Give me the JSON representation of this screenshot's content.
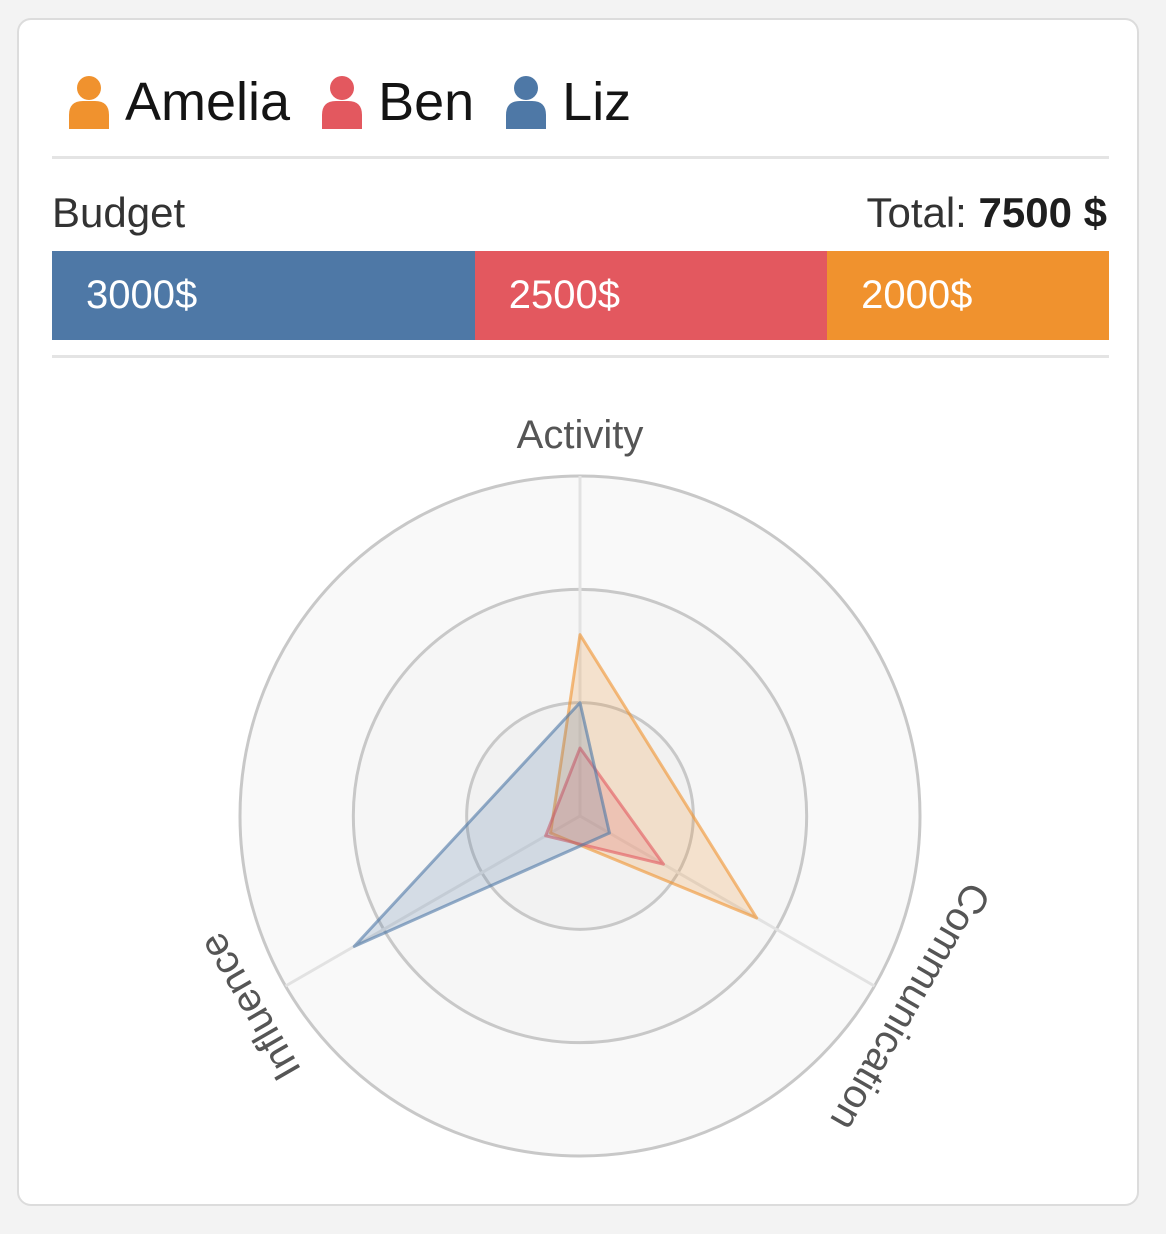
{
  "legend": {
    "people": [
      {
        "name": "Amelia",
        "color": "#f0922e"
      },
      {
        "name": "Ben",
        "color": "#e3585f"
      },
      {
        "name": "Liz",
        "color": "#4e78a6"
      }
    ]
  },
  "budget": {
    "label": "Budget",
    "total_label": "Total:",
    "total_value": "7500 $",
    "segments": [
      {
        "label": "3000$",
        "value": 3000,
        "color": "#4e78a6"
      },
      {
        "label": "2500$",
        "value": 2500,
        "color": "#e3585f"
      },
      {
        "label": "2000$",
        "value": 2000,
        "color": "#f0922e"
      }
    ]
  },
  "chart_data": {
    "type": "radar",
    "axes": [
      "Activity",
      "Communication",
      "Influence"
    ],
    "rings": 3,
    "range": [
      0,
      3
    ],
    "series": [
      {
        "name": "Amelia",
        "color": "#f0922e",
        "values": [
          1.6,
          1.8,
          0.3
        ]
      },
      {
        "name": "Ben",
        "color": "#e3585f",
        "values": [
          0.6,
          0.85,
          0.35
        ]
      },
      {
        "name": "Liz",
        "color": "#4e78a6",
        "values": [
          1.0,
          0.3,
          2.3
        ]
      }
    ]
  }
}
